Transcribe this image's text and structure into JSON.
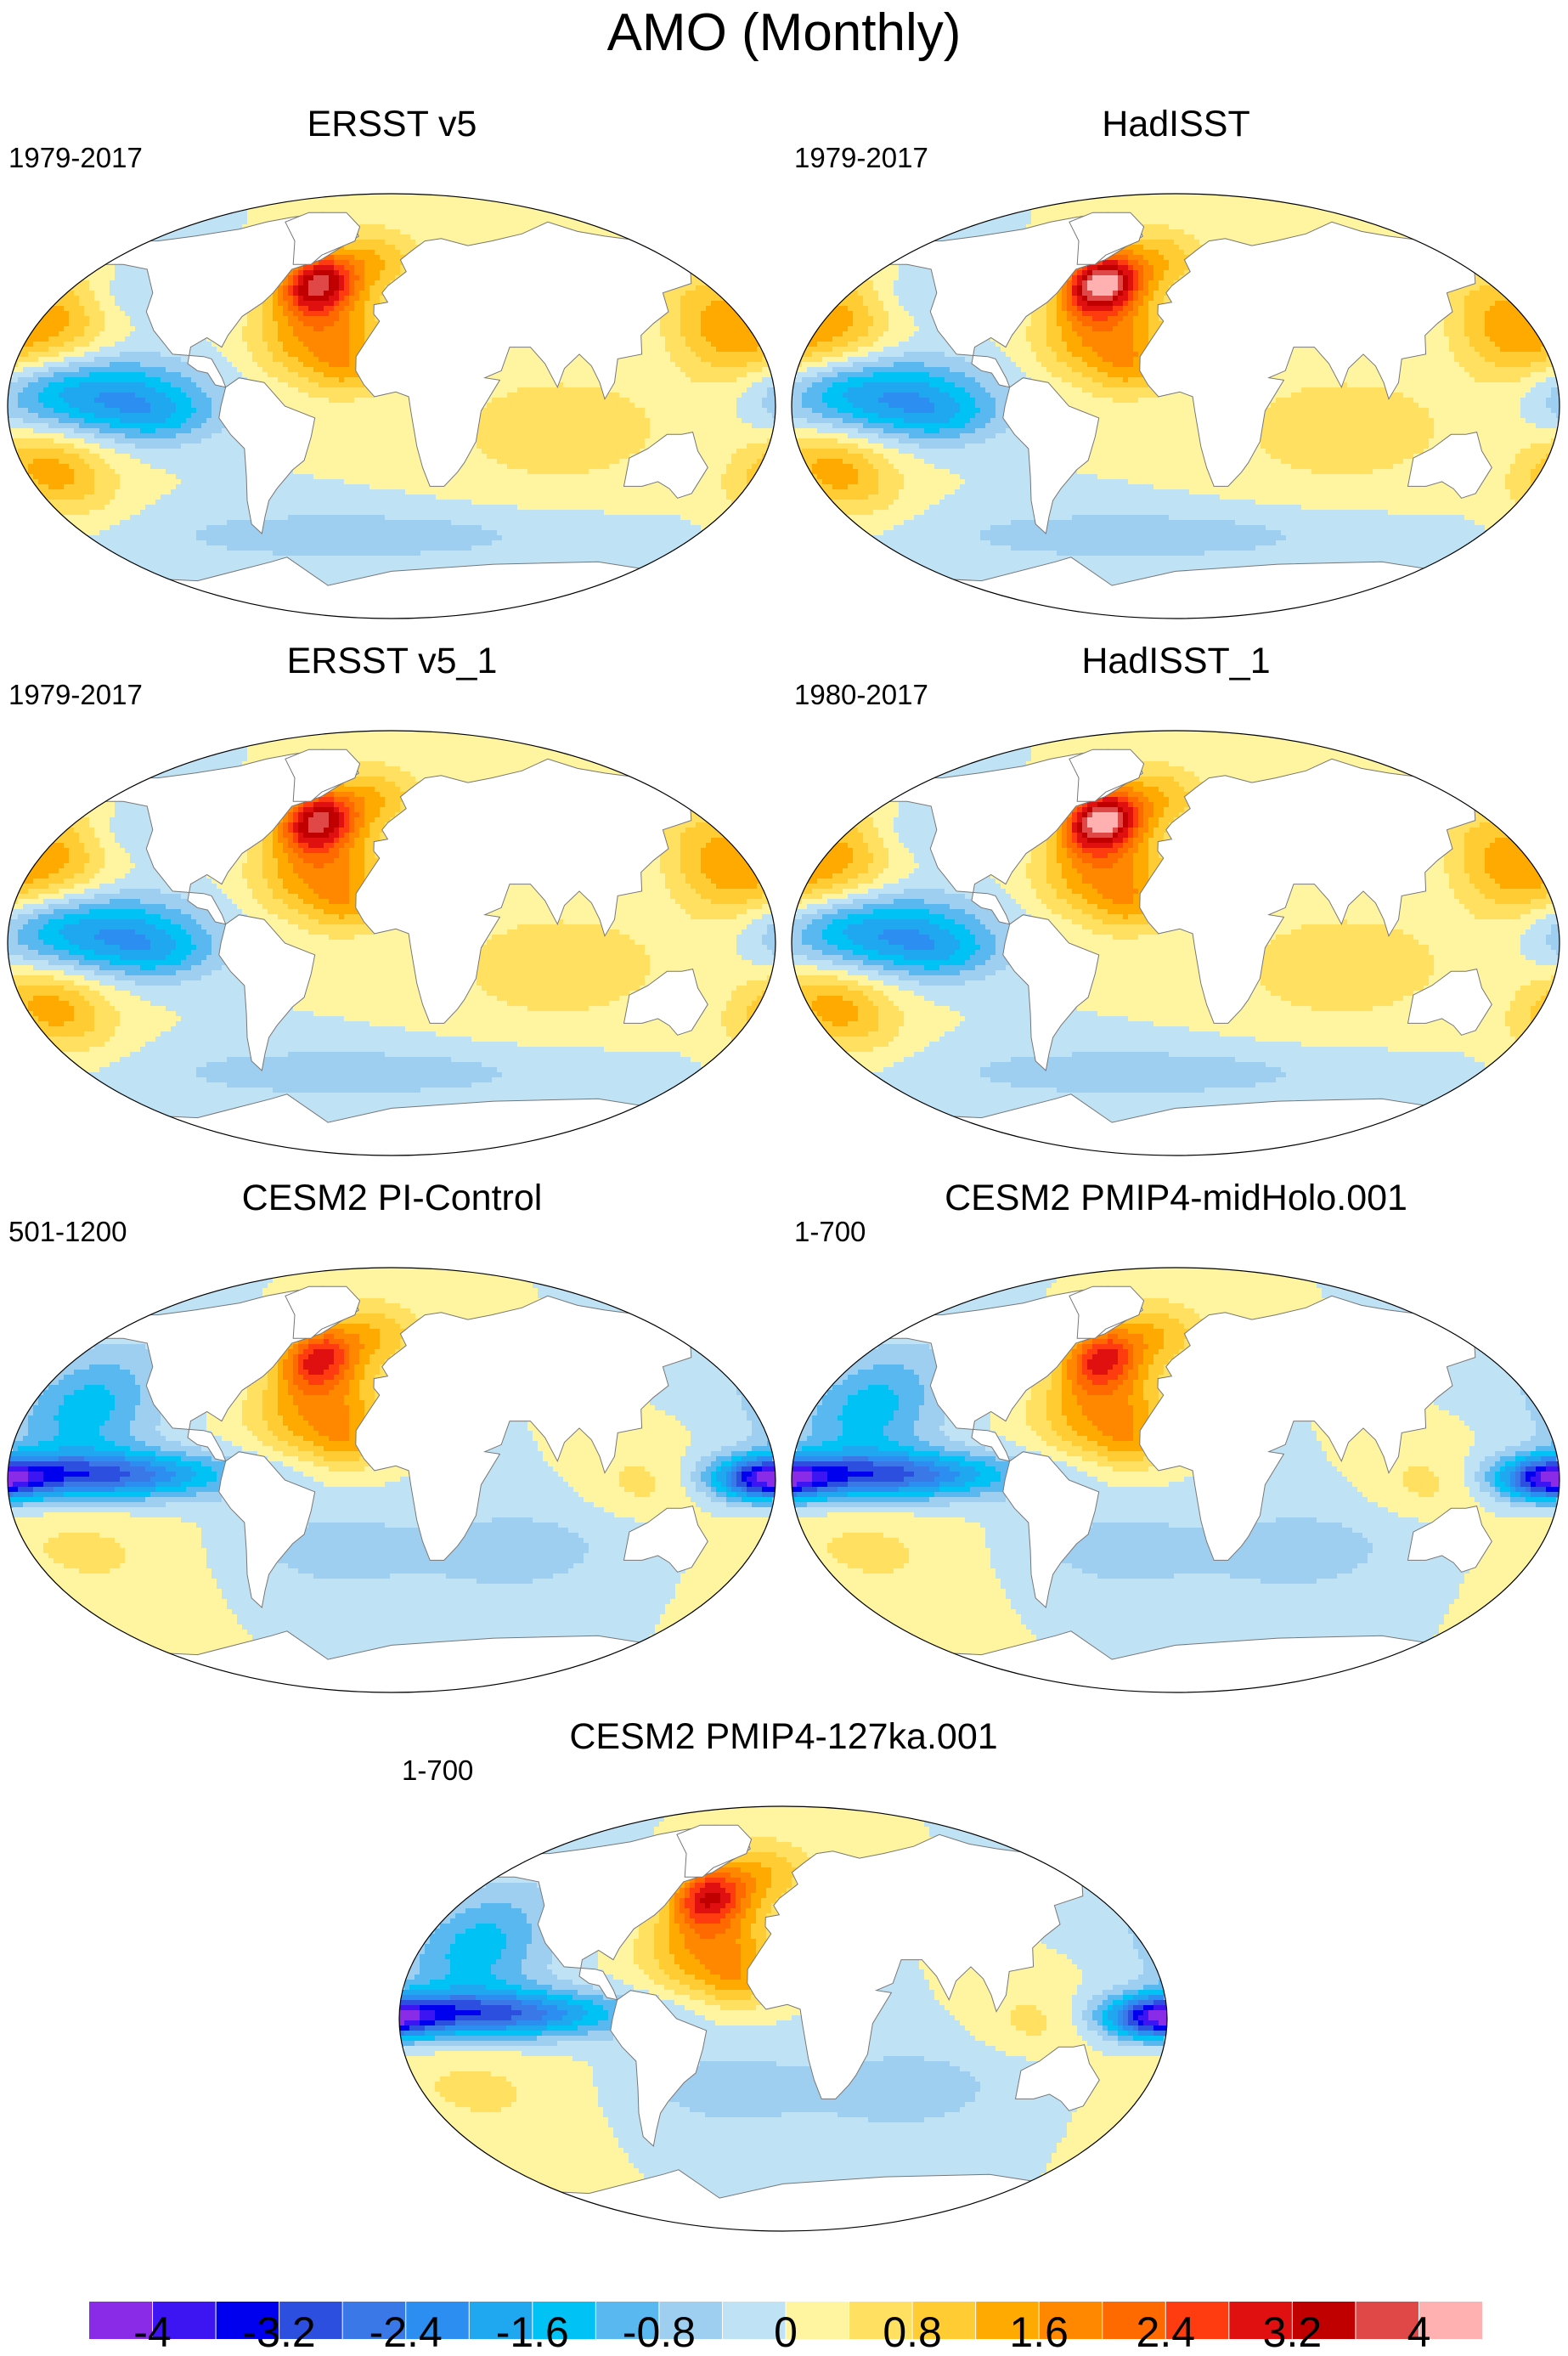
{
  "title": "AMO (Monthly)",
  "panels": [
    {
      "title": "ERSST v5",
      "period": "1979-2017",
      "pattern": "obs",
      "peak_nao": 3.2
    },
    {
      "title": "HadISST",
      "period": "1979-2017",
      "pattern": "obs",
      "peak_nao": 3.8
    },
    {
      "title": "ERSST v5_1",
      "period": "1979-2017",
      "pattern": "obs",
      "peak_nao": 3.2
    },
    {
      "title": "HadISST_1",
      "period": "1980-2017",
      "pattern": "obs",
      "peak_nao": 3.8
    },
    {
      "title": "CESM2 PI-Control",
      "period": "501-1200",
      "pattern": "model",
      "peak_nao": 2.4
    },
    {
      "title": "CESM2 PMIP4-midHolo.001",
      "period": "1-700",
      "pattern": "model",
      "peak_nao": 2.4
    },
    {
      "title": "CESM2 PMIP4-127ka.001",
      "period": "1-700",
      "pattern": "model",
      "peak_nao": 2.6
    }
  ],
  "colorbar": {
    "colors": [
      "#8a2be8",
      "#3d14f2",
      "#0000ee",
      "#2c4fe0",
      "#3a78e8",
      "#2b8ef0",
      "#1fa8f0",
      "#00c2f5",
      "#5ab8f0",
      "#9fcff0",
      "#c0e2f5",
      "#fff5a0",
      "#ffe060",
      "#ffcc33",
      "#ffaa00",
      "#ff8800",
      "#ff6a00",
      "#ff3c10",
      "#e01010",
      "#c00000",
      "#e04848",
      "#ffb0b0"
    ],
    "tick_labels": [
      "-4",
      "-3.2",
      "-2.4",
      "-1.6",
      "-0.8",
      "0",
      "0.8",
      "1.6",
      "2.4",
      "3.2",
      "4"
    ],
    "levels": [
      -4,
      -3.6,
      -3.2,
      -2.8,
      -2.4,
      -2,
      -1.6,
      -1.2,
      -0.8,
      -0.4,
      0,
      0.4,
      0.8,
      1.2,
      1.6,
      2,
      2.4,
      2.8,
      3.2,
      3.6,
      4
    ]
  }
}
